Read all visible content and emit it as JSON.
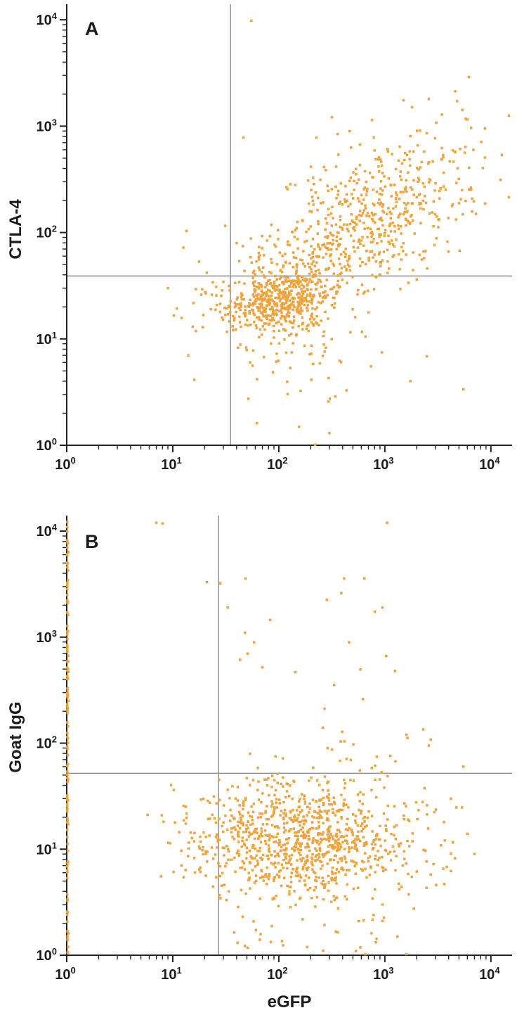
{
  "figure": {
    "background": "#ffffff",
    "point_color": "#f0a23c",
    "axis_color": "#222222",
    "quadrant_line_color": "#8f8f8f",
    "tick_base": "10",
    "tick_exponents": [
      "0",
      "1",
      "2",
      "3",
      "4"
    ]
  },
  "chart_data": [
    {
      "type": "scatter",
      "panel": "A",
      "ylabel": "CTLA-4",
      "xlabel": "",
      "xscale": "log",
      "yscale": "log",
      "xlim": [
        1,
        15000
      ],
      "ylim": [
        1,
        13000
      ],
      "legend": "none",
      "grid": false,
      "quadrant_gate": {
        "x": 35,
        "y": 39
      },
      "clusters": [
        {
          "count": 480,
          "cx": 2.02,
          "cy": 1.36,
          "sdx": 0.26,
          "sdy": 0.15,
          "rho": 0.05
        },
        {
          "count": 620,
          "cx": 2.78,
          "cy": 2.08,
          "sdx": 0.5,
          "sdy": 0.4,
          "rho": 0.6
        },
        {
          "count": 70,
          "cx": 2.12,
          "cy": 0.95,
          "sdx": 0.42,
          "sdy": 0.33,
          "rho": 0
        },
        {
          "count": 22,
          "cx": 1.32,
          "cy": 1.33,
          "sdx": 0.2,
          "sdy": 0.27,
          "rho": 0
        },
        {
          "type": "uniform",
          "count": 24,
          "x": [
            1.6,
            3.9
          ],
          "y": [
            0.5,
            3.1
          ]
        },
        {
          "type": "uniform",
          "count": 30,
          "x": [
            3.0,
            3.85
          ],
          "y": [
            2.0,
            3.0
          ]
        }
      ],
      "outliers": [
        [
          55,
          9800
        ],
        [
          6200,
          2900
        ],
        [
          2600,
          1800
        ],
        [
          1500,
          1750
        ],
        [
          8800,
          950
        ],
        [
          9,
          30
        ],
        [
          14,
          7
        ],
        [
          220,
          1
        ],
        [
          300,
          1.3
        ]
      ]
    },
    {
      "type": "scatter",
      "panel": "B",
      "ylabel": "Goat IgG",
      "xlabel": "eGFP",
      "xscale": "log",
      "yscale": "log",
      "xlim": [
        1,
        15000
      ],
      "ylim": [
        1,
        13000
      ],
      "legend": "none",
      "grid": false,
      "quadrant_gate": {
        "x": 27,
        "y": 52
      },
      "clusters": [
        {
          "count": 960,
          "cx": 2.18,
          "cy": 1.08,
          "sdx": 0.5,
          "sdy": 0.27,
          "rho": 0,
          "clip": {
            "ymax": 1.68
          }
        },
        {
          "count": 30,
          "cx": 2.6,
          "cy": 1.82,
          "sdx": 0.5,
          "sdy": 0.18,
          "rho": 0
        },
        {
          "type": "uniform",
          "count": 120,
          "x": [
            0,
            0.015
          ],
          "y": [
            0,
            4.1
          ]
        },
        {
          "type": "uniform",
          "count": 16,
          "x": [
            1.4,
            3.3
          ],
          "y": [
            2.3,
            3.6
          ]
        },
        {
          "type": "uniform",
          "count": 40,
          "x": [
            1.5,
            3.3
          ],
          "y": [
            0,
            0.55
          ]
        },
        {
          "type": "uniform",
          "count": 30,
          "x": [
            2.9,
            3.75
          ],
          "y": [
            0.6,
            1.5
          ]
        }
      ],
      "outliers": [
        [
          7,
          12000
        ],
        [
          8,
          11800
        ],
        [
          21,
          3300
        ],
        [
          28,
          3200
        ],
        [
          33,
          1900
        ],
        [
          48,
          1100
        ],
        [
          70,
          520
        ],
        [
          1050,
          12000
        ],
        [
          950,
          1900
        ],
        [
          1250,
          480
        ],
        [
          620,
          260
        ],
        [
          1600,
          120
        ],
        [
          2600,
          95
        ],
        [
          260,
          140
        ],
        [
          5500,
          60
        ],
        [
          4200,
          30
        ],
        [
          6000,
          14
        ],
        [
          7000,
          9
        ]
      ]
    }
  ]
}
